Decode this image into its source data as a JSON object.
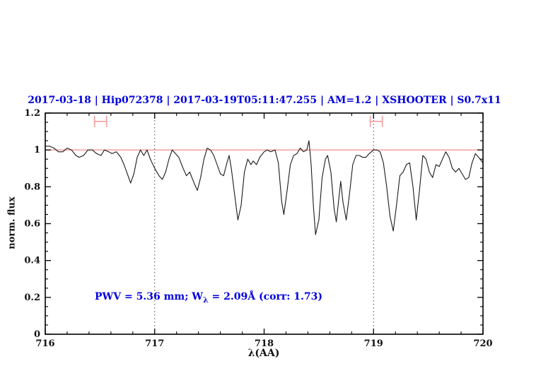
{
  "colors": {
    "annotation_blue": "#0000dd",
    "continuum_red": "#ef7f7f",
    "marker_pink": "#f29a9a",
    "spectrum_black": "#1a1a1a",
    "frame_black": "#000000",
    "dotted_line": "#444444"
  },
  "plot": {
    "title": "2017-03-18 | Hip072378 | 2017-03-19T05:11:47.255 | AM=1.2 | XSHOOTER | S0.7x11",
    "xlabel": "λ(AA)",
    "ylabel": "norm. flux",
    "annotation": {
      "prefix": "PWV = 5.36 mm; W",
      "subscript": "λ",
      "suffix": " = 2.09Å (corr: 1.73)"
    }
  },
  "chart_data": {
    "type": "line",
    "title": "2017-03-18 | Hip072378 | 2017-03-19T05:11:47.255 | AM=1.2 | XSHOOTER | S0.7x11",
    "xlabel": "λ(AA)",
    "ylabel": "norm. flux",
    "xlim": [
      716,
      720
    ],
    "ylim": [
      0,
      1.2
    ],
    "grid": false,
    "x_ticks": {
      "values": [
        716,
        717,
        718,
        719,
        720
      ],
      "labels": [
        "716",
        "717",
        "718",
        "719",
        "720"
      ],
      "minor_step": 0.2
    },
    "y_ticks": {
      "values": [
        0,
        0.2,
        0.4,
        0.6,
        0.8,
        1,
        1.2
      ],
      "labels": [
        "0",
        "0.2",
        "0.4",
        "0.6",
        "0.8",
        "1",
        "1.2"
      ],
      "minor_step": 0.05
    },
    "dotted_vlines": [
      717,
      719
    ],
    "continuum_line": {
      "y": 1.0
    },
    "range_markers": [
      {
        "x_start": 716.45,
        "x_end": 716.56,
        "y": 1.155
      },
      {
        "x_start": 718.97,
        "x_end": 719.08,
        "y": 1.155
      }
    ],
    "annotation": {
      "text": "PWV = 5.36 mm; Wλ = 2.09Å (corr: 1.73)",
      "x": 716.46,
      "y": 0.19
    },
    "series": [
      {
        "name": "telluric-spectrum",
        "x": [
          716.0,
          716.04,
          716.08,
          716.12,
          716.16,
          716.2,
          716.24,
          716.28,
          716.31,
          716.35,
          716.39,
          716.43,
          716.47,
          716.51,
          716.54,
          716.58,
          716.61,
          716.65,
          716.69,
          716.72,
          716.75,
          716.78,
          716.81,
          716.84,
          716.87,
          716.9,
          716.93,
          716.96,
          717.0,
          717.04,
          717.07,
          717.1,
          717.13,
          717.16,
          717.19,
          717.22,
          717.26,
          717.29,
          717.32,
          717.36,
          717.39,
          717.42,
          717.45,
          717.48,
          717.51,
          717.54,
          717.57,
          717.6,
          717.63,
          717.66,
          717.68,
          717.7,
          717.73,
          717.76,
          717.79,
          717.82,
          717.85,
          717.88,
          717.9,
          717.93,
          717.96,
          718.0,
          718.03,
          718.06,
          718.1,
          718.13,
          718.16,
          718.18,
          718.21,
          718.24,
          718.27,
          718.3,
          718.33,
          718.36,
          718.39,
          718.41,
          718.43,
          718.45,
          718.47,
          718.5,
          718.53,
          718.56,
          718.58,
          718.61,
          718.64,
          718.66,
          718.68,
          718.7,
          718.72,
          718.75,
          718.78,
          718.81,
          718.84,
          718.87,
          718.9,
          718.93,
          718.96,
          719.0,
          719.03,
          719.06,
          719.09,
          719.12,
          719.15,
          719.18,
          719.21,
          719.24,
          719.27,
          719.3,
          719.33,
          719.36,
          719.39,
          719.42,
          719.45,
          719.48,
          719.51,
          719.54,
          719.57,
          719.6,
          719.63,
          719.66,
          719.69,
          719.72,
          719.75,
          719.78,
          719.81,
          719.84,
          719.87,
          719.9,
          719.93,
          719.96,
          720.0
        ],
        "y": [
          1.02,
          1.02,
          1.01,
          0.99,
          0.99,
          1.01,
          1.0,
          0.97,
          0.96,
          0.97,
          1.0,
          1.0,
          0.98,
          0.97,
          1.0,
          0.99,
          0.98,
          0.99,
          0.96,
          0.92,
          0.87,
          0.82,
          0.87,
          0.96,
          1.0,
          0.97,
          1.0,
          0.95,
          0.9,
          0.86,
          0.84,
          0.88,
          0.95,
          1.0,
          0.98,
          0.96,
          0.9,
          0.86,
          0.88,
          0.82,
          0.78,
          0.85,
          0.95,
          1.01,
          1.0,
          0.97,
          0.92,
          0.87,
          0.86,
          0.93,
          0.97,
          0.9,
          0.76,
          0.62,
          0.7,
          0.88,
          0.95,
          0.92,
          0.94,
          0.92,
          0.96,
          0.99,
          1.0,
          0.99,
          1.0,
          0.93,
          0.72,
          0.65,
          0.78,
          0.92,
          0.97,
          0.98,
          1.01,
          0.99,
          1.0,
          1.05,
          0.92,
          0.7,
          0.54,
          0.62,
          0.85,
          0.95,
          0.97,
          0.88,
          0.68,
          0.61,
          0.72,
          0.83,
          0.72,
          0.62,
          0.76,
          0.92,
          0.97,
          0.97,
          0.96,
          0.96,
          0.98,
          1.0,
          1.0,
          0.99,
          0.93,
          0.8,
          0.64,
          0.56,
          0.7,
          0.86,
          0.88,
          0.92,
          0.93,
          0.8,
          0.62,
          0.78,
          0.97,
          0.95,
          0.88,
          0.85,
          0.92,
          0.91,
          0.95,
          0.99,
          0.96,
          0.9,
          0.88,
          0.9,
          0.87,
          0.84,
          0.85,
          0.93,
          0.98,
          0.96,
          0.93
        ]
      }
    ]
  }
}
